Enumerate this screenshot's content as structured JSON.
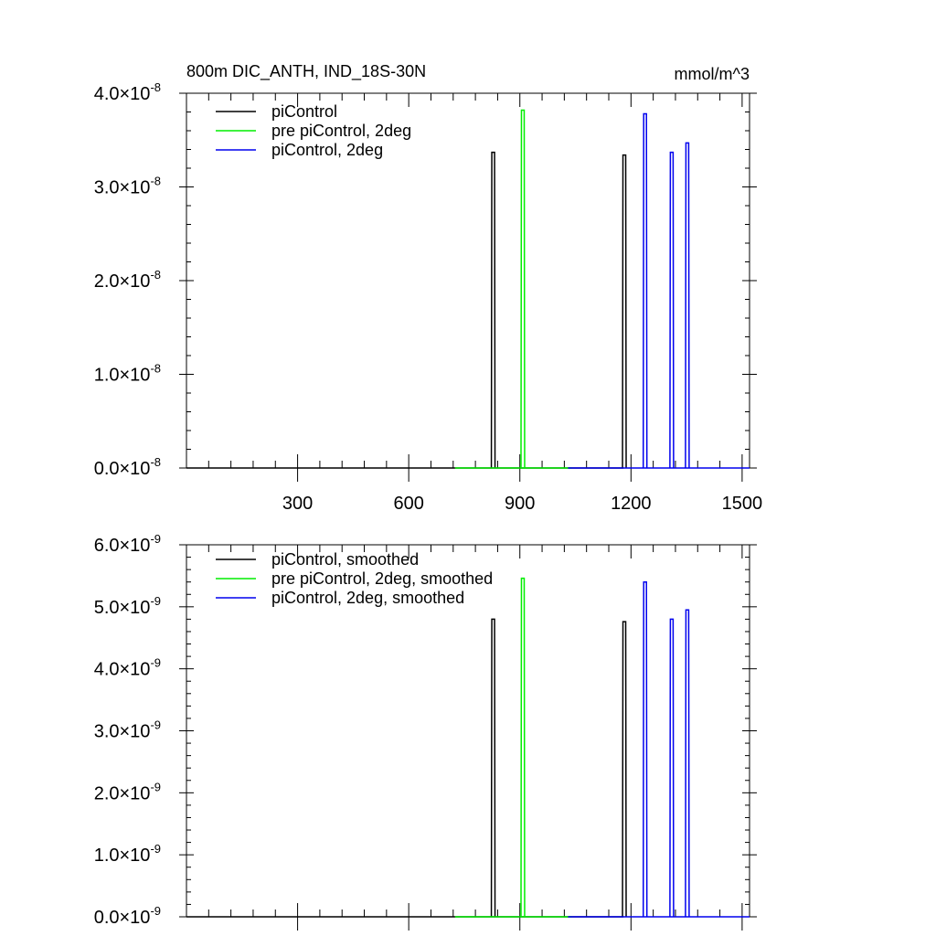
{
  "chart_data": [
    {
      "type": "line",
      "title": "800m DIC_ANTH, IND_18S-30N",
      "units": "mmol/m^3",
      "xlim": [
        0,
        1520
      ],
      "ylim": [
        0,
        4e-08
      ],
      "x_ticks": [
        300,
        600,
        900,
        1200,
        1500
      ],
      "x_tick_labels": [
        "300",
        "600",
        "900",
        "1200",
        "1500"
      ],
      "y_ticks": [
        0,
        1e-08,
        2e-08,
        3e-08,
        4e-08
      ],
      "y_tick_mantissas": [
        "0.0",
        "1.0",
        "2.0",
        "3.0",
        "4.0"
      ],
      "y_exponent": "-8",
      "legend_position": "top-left",
      "series": [
        {
          "name": "piControl",
          "color": "#000000",
          "x_range": [
            0,
            1180
          ],
          "spikes": [
            {
              "x": 828,
              "y": 3.37e-08
            },
            {
              "x": 1182,
              "y": 3.34e-08
            }
          ]
        },
        {
          "name": "pre piControl, 2deg",
          "color": "#00ee00",
          "x_range": [
            725,
            1040
          ],
          "spikes": [
            {
              "x": 908,
              "y": 3.82e-08
            }
          ]
        },
        {
          "name": "piControl, 2deg",
          "color": "#0000ee",
          "x_range": [
            1030,
            1520
          ],
          "spikes": [
            {
              "x": 1238,
              "y": 3.78e-08
            },
            {
              "x": 1310,
              "y": 3.37e-08
            },
            {
              "x": 1352,
              "y": 3.47e-08
            }
          ]
        }
      ]
    },
    {
      "type": "line",
      "xlim": [
        0,
        1520
      ],
      "ylim": [
        0,
        6e-09
      ],
      "x_ticks": [
        300,
        600,
        900,
        1200,
        1500
      ],
      "y_ticks": [
        0,
        1e-09,
        2e-09,
        3e-09,
        4e-09,
        5e-09,
        6e-09
      ],
      "y_tick_mantissas": [
        "0.0",
        "1.0",
        "2.0",
        "3.0",
        "4.0",
        "5.0",
        "6.0"
      ],
      "y_exponent": "-9",
      "legend_position": "top-left",
      "series": [
        {
          "name": "piControl, smoothed",
          "color": "#000000",
          "x_range": [
            0,
            1180
          ],
          "spikes": [
            {
              "x": 828,
              "y": 4.8e-09
            },
            {
              "x": 1182,
              "y": 4.76e-09
            }
          ]
        },
        {
          "name": "pre piControl, 2deg, smoothed",
          "color": "#00ee00",
          "x_range": [
            725,
            1040
          ],
          "spikes": [
            {
              "x": 908,
              "y": 5.46e-09
            }
          ]
        },
        {
          "name": "piControl, 2deg, smoothed",
          "color": "#0000ee",
          "x_range": [
            1030,
            1520
          ],
          "spikes": [
            {
              "x": 1238,
              "y": 5.4e-09
            },
            {
              "x": 1310,
              "y": 4.8e-09
            },
            {
              "x": 1352,
              "y": 4.95e-09
            }
          ]
        }
      ]
    }
  ]
}
